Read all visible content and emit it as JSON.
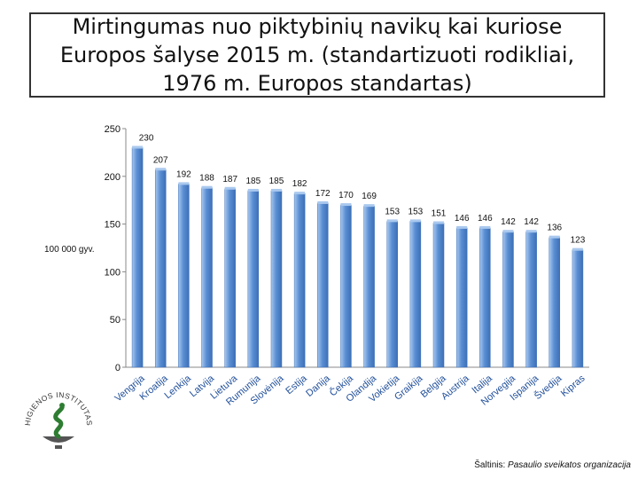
{
  "title": "Mirtingumas nuo piktybinių navikų kai kuriose Europos šalyse 2015 m. (standartizuoti rodikliai, 1976 m. Europos standartas)",
  "unit_label": "100 000 gyv.",
  "source": {
    "prefix": "Šaltinis: ",
    "name": "Pasaulio sveikatos organizacija"
  },
  "logo": {
    "text": "HIGIENOS INSTITUTAS",
    "icon": "snake-bowl-icon"
  },
  "colors": {
    "bar": "#5b8fd4",
    "bar_dark": "#3c6fb6",
    "bar_light": "#a9c8ee",
    "label": "#1f4e9a",
    "axis": "#888888"
  },
  "chart_data": {
    "type": "bar",
    "categories": [
      "Vengrija",
      "Kroatija",
      "Lenkija",
      "Latvija",
      "Lietuva",
      "Rumunija",
      "Slovėnija",
      "Estija",
      "Danija",
      "Čekija",
      "Olandija",
      "Vokietija",
      "Graikija",
      "Belgija",
      "Austrija",
      "Italija",
      "Norvegija",
      "Ispanija",
      "Švedija",
      "Kipras"
    ],
    "values": [
      230,
      207,
      192,
      188,
      187,
      185,
      185,
      182,
      172,
      170,
      169,
      153,
      153,
      151,
      146,
      146,
      142,
      142,
      136,
      123
    ],
    "ylim": [
      0,
      250
    ],
    "yticks": [
      "0",
      "50",
      "100",
      "150",
      "200",
      "250"
    ],
    "title": "Mirtingumas nuo piktybinių navikų kai kuriose Europos šalyse 2015 m. (standartizuoti rodikliai, 1976 m. Europos standartas)",
    "ylabel": "100 000 gyv.",
    "grid": false,
    "legend": "none"
  }
}
